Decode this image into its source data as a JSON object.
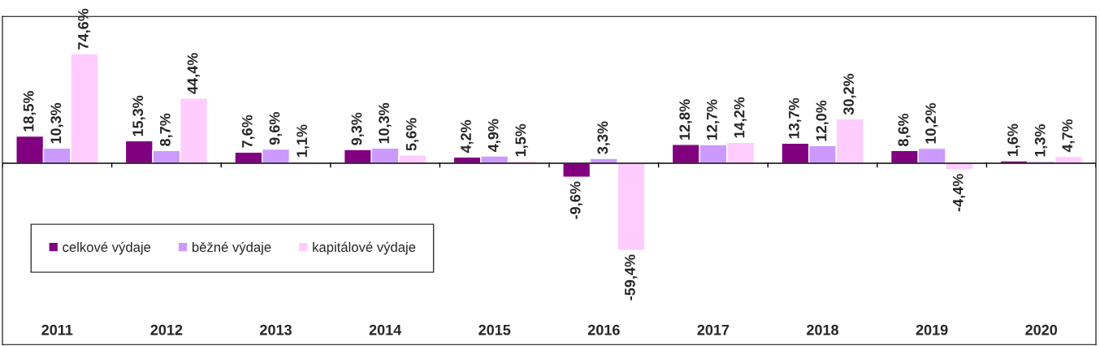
{
  "chart_data": {
    "type": "bar",
    "categories": [
      "2011",
      "2012",
      "2013",
      "2014",
      "2015",
      "2016",
      "2017",
      "2018",
      "2019",
      "2020"
    ],
    "series": [
      {
        "name": "celkové výdaje",
        "color": "#800080",
        "values": [
          18.5,
          15.3,
          7.6,
          9.3,
          4.2,
          -9.6,
          12.8,
          13.7,
          8.6,
          1.6
        ],
        "value_labels": [
          "18,5%",
          "15,3%",
          "7,6%",
          "9,3%",
          "4,2%",
          "-9,6%",
          "12,8%",
          "13,7%",
          "8,6%",
          "1,6%"
        ]
      },
      {
        "name": "běžné výdaje",
        "color": "#cc99ff",
        "values": [
          10.3,
          8.7,
          9.6,
          10.3,
          4.9,
          3.3,
          12.7,
          12.0,
          10.2,
          1.3
        ],
        "value_labels": [
          "10,3%",
          "8,7%",
          "9,6%",
          "10,3%",
          "4,9%",
          "3,3%",
          "12,7%",
          "12,0%",
          "10,2%",
          "1,3%"
        ]
      },
      {
        "name": "kapitálové výdaje",
        "color": "#ffccff",
        "values": [
          74.6,
          44.4,
          1.1,
          5.6,
          1.5,
          -59.4,
          14.2,
          30.2,
          -4.4,
          4.7
        ],
        "value_labels": [
          "74,6%",
          "44,4%",
          "1,1%",
          "5,6%",
          "1,5%",
          "-59,4%",
          "14,2%",
          "30,2%",
          "-4,4%",
          "4,7%"
        ]
      }
    ],
    "legend": "bottom left",
    "grid": false
  }
}
